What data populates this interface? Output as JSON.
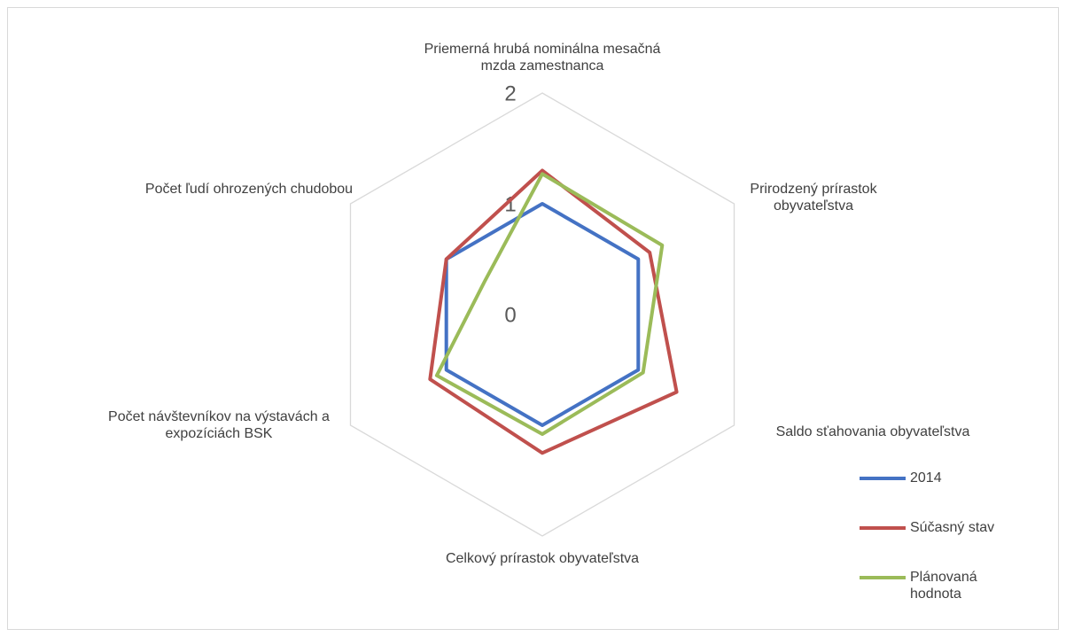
{
  "chart_data": {
    "type": "radar",
    "categories": [
      "Priemerná hrubá nominálna mesačná mzda zamestnanca",
      "Prirodzený prírastok obyvateľstva",
      "Saldo sťahovania obyvateľstva",
      "Celkový prírastok obyvateľstva",
      "Počet návštevníkov na výstavách a expozíciách BSK",
      "Počet ľudí ohrozených chudobou"
    ],
    "series": [
      {
        "name": "2014",
        "color": "#4472c4",
        "values": [
          1.0,
          1.0,
          1.0,
          1.0,
          1.0,
          1.0
        ]
      },
      {
        "name": "Súčasný stav",
        "color": "#c0504d",
        "values": [
          1.3,
          1.12,
          1.4,
          1.25,
          1.17,
          1.0
        ]
      },
      {
        "name": "Plánovaná hodnota",
        "color": "#9bbb59",
        "values": [
          1.27,
          1.25,
          1.05,
          1.08,
          1.1,
          0.6
        ]
      }
    ],
    "ylim": [
      0,
      2
    ],
    "yticks": [
      0,
      1,
      2
    ],
    "grid": true,
    "legend": "right"
  }
}
